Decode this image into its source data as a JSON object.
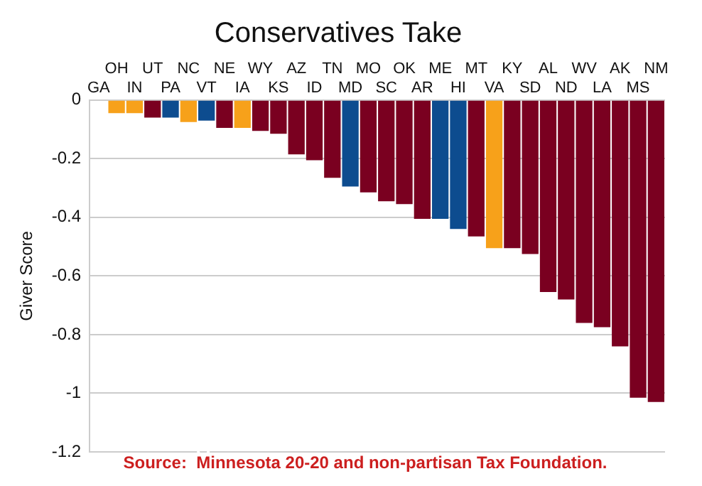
{
  "chart_data": {
    "type": "bar",
    "title": "Conservatives Take",
    "ylabel": "Giver Score",
    "categories": [
      "GA",
      "OH",
      "IN",
      "UT",
      "PA",
      "NC",
      "VT",
      "NE",
      "IA",
      "WY",
      "KS",
      "AZ",
      "ID",
      "TN",
      "MD",
      "MO",
      "SC",
      "OK",
      "AR",
      "ME",
      "HI",
      "MT",
      "VA",
      "KY",
      "SD",
      "AL",
      "ND",
      "WV",
      "LA",
      "AK",
      "MS",
      "NM"
    ],
    "values": [
      0,
      -0.045,
      -0.045,
      -0.06,
      -0.06,
      -0.075,
      -0.07,
      -0.095,
      -0.095,
      -0.105,
      -0.115,
      -0.185,
      -0.205,
      -0.265,
      -0.295,
      -0.315,
      -0.345,
      -0.355,
      -0.405,
      -0.405,
      -0.44,
      -0.465,
      -0.505,
      -0.505,
      -0.525,
      -0.655,
      -0.68,
      -0.76,
      -0.775,
      -0.84,
      -1.015,
      -1.03
    ],
    "colors": [
      "#7a0020",
      "#f7a11a",
      "#f7a11a",
      "#7a0020",
      "#0d4c8f",
      "#f7a11a",
      "#0d4c8f",
      "#7a0020",
      "#f7a11a",
      "#7a0020",
      "#7a0020",
      "#7a0020",
      "#7a0020",
      "#7a0020",
      "#0d4c8f",
      "#7a0020",
      "#7a0020",
      "#7a0020",
      "#7a0020",
      "#0d4c8f",
      "#0d4c8f",
      "#7a0020",
      "#f7a11a",
      "#7a0020",
      "#7a0020",
      "#7a0020",
      "#7a0020",
      "#7a0020",
      "#7a0020",
      "#7a0020",
      "#7a0020",
      "#7a0020"
    ],
    "ylim": [
      -1.2,
      0
    ],
    "yticks": [
      0,
      -0.2,
      -0.4,
      -0.6,
      -0.8,
      -1,
      -1.2
    ],
    "grid": "y",
    "legend": false,
    "annotations": [
      "Source:  Minnesota 20-20 and non-partisan Tax Foundation."
    ]
  }
}
